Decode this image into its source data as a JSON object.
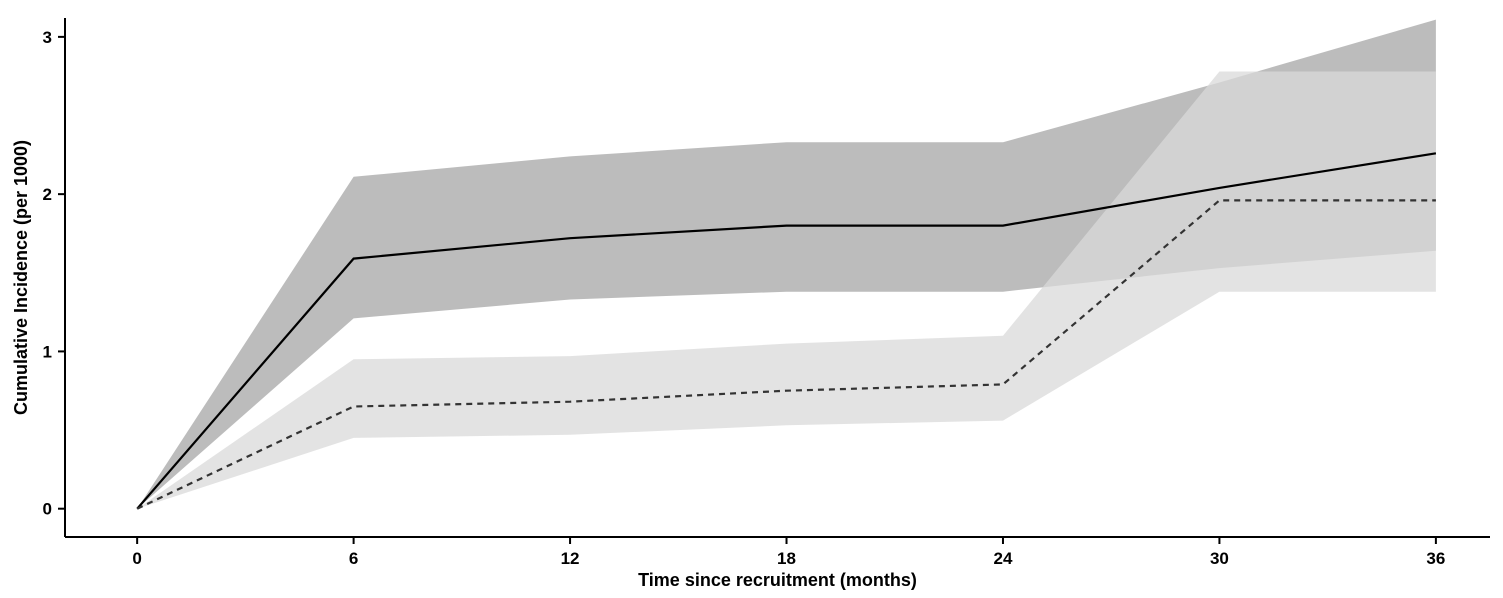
{
  "chart_data": {
    "type": "line",
    "xlabel": "Time since recruitment (months)",
    "ylabel": "Cumulative Incidence (per 1000)",
    "x": [
      0,
      6,
      12,
      18,
      24,
      30,
      36
    ],
    "xticks": [
      "0",
      "6",
      "12",
      "18",
      "24",
      "30",
      "36"
    ],
    "yticks": [
      "0",
      "1",
      "2",
      "3"
    ],
    "xlim": [
      -2,
      37.5
    ],
    "ylim": [
      -0.18,
      3.12
    ],
    "grid": false,
    "legend": "none",
    "series": [
      {
        "line_style": "solid",
        "line_color": "#000000",
        "band_color": "#a6a6a6",
        "values": [
          0,
          1.59,
          1.72,
          1.8,
          1.8,
          2.04,
          2.26
        ],
        "lower": [
          0,
          1.21,
          1.33,
          1.38,
          1.38,
          1.53,
          1.64
        ],
        "upper": [
          0,
          2.11,
          2.24,
          2.33,
          2.33,
          2.71,
          3.11
        ]
      },
      {
        "line_style": "dashed",
        "line_color": "#333333",
        "band_color": "#d9d9d9",
        "values": [
          0,
          0.65,
          0.68,
          0.75,
          0.79,
          1.96,
          1.96
        ],
        "lower": [
          0,
          0.45,
          0.47,
          0.53,
          0.56,
          1.38,
          1.38
        ],
        "upper": [
          0,
          0.95,
          0.97,
          1.05,
          1.1,
          2.78,
          2.78
        ]
      }
    ]
  }
}
